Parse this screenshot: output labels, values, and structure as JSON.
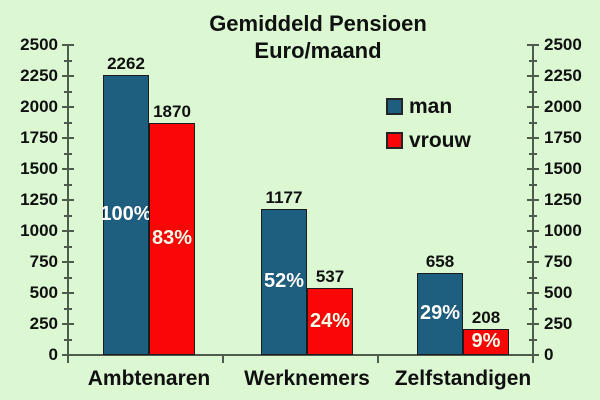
{
  "title": {
    "line1": "Gemiddeld Pensioen",
    "line2": "Euro/maand"
  },
  "legend": {
    "items": [
      {
        "label": "man",
        "color": "#1e5f80"
      },
      {
        "label": "vrouw",
        "color": "#f90606"
      }
    ]
  },
  "chart_data": {
    "type": "bar",
    "title": "Gemiddeld Pensioen Euro/maand",
    "categories": [
      "Ambtenaren",
      "Werknemers",
      "Zelfstandigen"
    ],
    "series": [
      {
        "name": "man",
        "color": "#1e5f80",
        "values": [
          2262,
          1177,
          658
        ],
        "percent_labels": [
          "100%",
          "52%",
          "29%"
        ],
        "percent_label_color": "#ffffff"
      },
      {
        "name": "vrouw",
        "color": "#f90606",
        "values": [
          1870,
          537,
          208
        ],
        "percent_labels": [
          "83%",
          "24%",
          "9%"
        ],
        "percent_label_color": "#fffdе9"
      }
    ],
    "ylim": [
      0,
      2500
    ],
    "ytick_major_step": 250,
    "ytick_minor_step": 125,
    "y_axes": [
      "left",
      "right"
    ],
    "grid": false,
    "legend_position": "upper-right-inside",
    "background_color": "#dbf8d3",
    "axis_color": "#4d5c4d",
    "text_color": "#101010",
    "value_label_color": "#101010"
  }
}
